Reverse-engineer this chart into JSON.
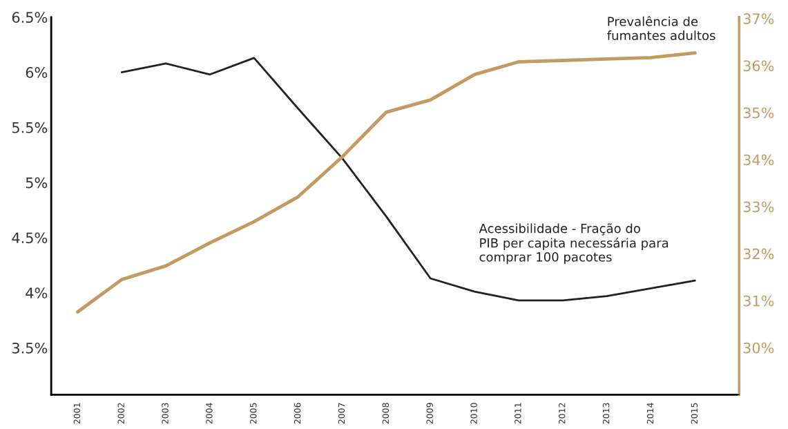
{
  "chart_data": {
    "type": "line",
    "x": [
      2001,
      2002,
      2003,
      2004,
      2005,
      2006,
      2007,
      2008,
      2009,
      2010,
      2011,
      2012,
      2013,
      2014,
      2015
    ],
    "series": [
      {
        "name": "Acessibilidade - Fração do\nPIB per capita necessária para\ncomprar 100 pacotes",
        "color": "#222222",
        "axis": "y",
        "values": [
          null,
          6.0,
          6.08,
          5.98,
          6.13,
          5.67,
          5.22,
          4.69,
          4.13,
          4.01,
          3.93,
          3.93,
          3.97,
          4.04,
          4.11
        ]
      },
      {
        "name": "Prevalência de\nfumantes adultos",
        "color": "#c49a63",
        "axis": "y2",
        "values": [
          30.76,
          31.45,
          31.74,
          32.23,
          32.68,
          33.21,
          34.06,
          35.01,
          35.27,
          35.81,
          36.08,
          36.11,
          36.14,
          36.17,
          36.27
        ]
      }
    ],
    "xlim": [
      2000.4,
      2016.0
    ],
    "xticks": [
      2001,
      2002,
      2003,
      2004,
      2005,
      2006,
      2007,
      2008,
      2009,
      2010,
      2011,
      2012,
      2013,
      2014,
      2015
    ],
    "ylim": [
      3.075,
      6.5
    ],
    "yticks": [
      {
        "value": 3.5,
        "label": "3.5%"
      },
      {
        "value": 4,
        "label": "4%"
      },
      {
        "value": 4.5,
        "label": "4.5%"
      },
      {
        "value": 5,
        "label": "5%"
      },
      {
        "value": 5.5,
        "label": "5.5%"
      },
      {
        "value": 6,
        "label": "6%"
      },
      {
        "value": 6.5,
        "label": "6.5%"
      }
    ],
    "y2lim": [
      29,
      37.03
    ],
    "y2ticks": [
      {
        "value": 30,
        "label": "30%"
      },
      {
        "value": 31,
        "label": "31%"
      },
      {
        "value": 32,
        "label": "32%"
      },
      {
        "value": 33,
        "label": "33%"
      },
      {
        "value": 34,
        "label": "34%"
      },
      {
        "value": 35,
        "label": "35%"
      },
      {
        "value": 36,
        "label": "36%"
      },
      {
        "value": 37,
        "label": "37%"
      }
    ],
    "grid": false,
    "legend": false,
    "marker": "none",
    "line_style": "solid"
  }
}
